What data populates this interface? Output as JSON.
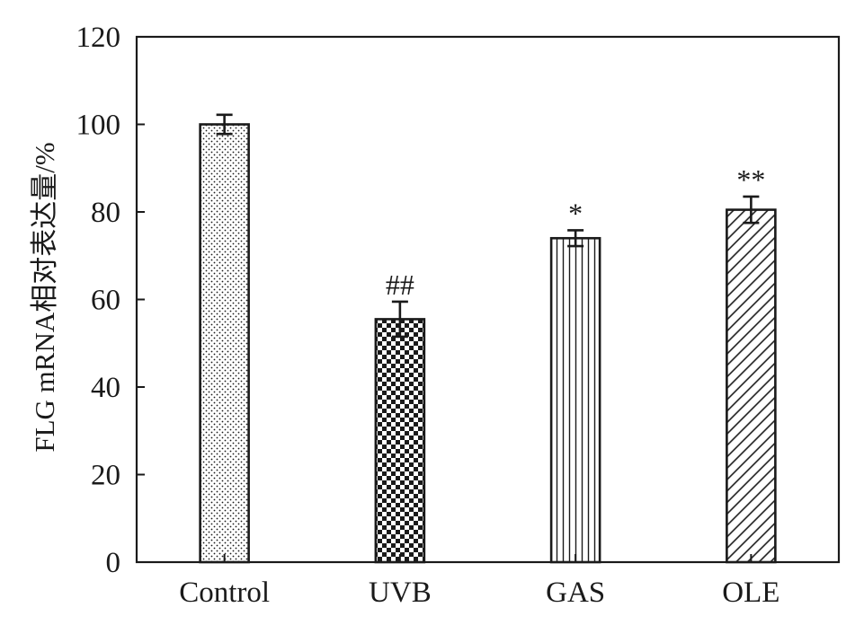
{
  "chart_data": {
    "type": "bar",
    "title": "",
    "xlabel": "",
    "ylabel": "FLG mRNA相对表达量/%",
    "ylim": [
      0,
      120
    ],
    "yticks": [
      0,
      20,
      40,
      60,
      80,
      100,
      120
    ],
    "grid": false,
    "categories": [
      "Control",
      "UVB",
      "GAS",
      "OLE"
    ],
    "values": [
      100,
      55.5,
      74,
      80.5
    ],
    "errors": [
      2.2,
      4.0,
      1.8,
      3.0
    ],
    "annotations": [
      "",
      "##",
      "*",
      "**"
    ],
    "patterns": [
      "dots",
      "checker",
      "vertical-lines",
      "diagonal-lines"
    ]
  },
  "colors": {
    "ink": "#1a1a1a",
    "background": "#ffffff"
  }
}
